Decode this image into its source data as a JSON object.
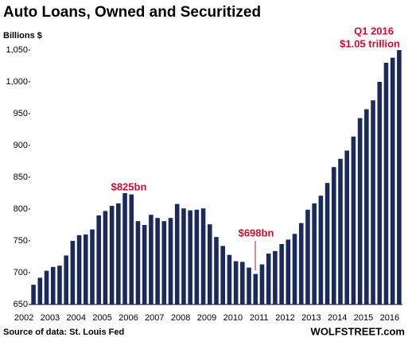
{
  "chart_data": {
    "type": "bar",
    "title": "Auto Loans, Owned and Securitized",
    "y_label": "Billions $",
    "source": "Source of data: St. Louis Fed",
    "brand": "WOLFSTREET.com",
    "annotations": [
      "$825bn",
      "$698bn",
      "Q1 2016",
      "$1.05 trillion"
    ],
    "color": "#1b2a5c",
    "categories": [
      "2002",
      null,
      null,
      null,
      "2003",
      null,
      null,
      null,
      "2004",
      null,
      null,
      null,
      "2005",
      null,
      null,
      null,
      "2006",
      null,
      null,
      null,
      "2007",
      null,
      null,
      null,
      "2008",
      null,
      null,
      null,
      "2009",
      null,
      null,
      null,
      "2010",
      null,
      null,
      null,
      "2011",
      null,
      null,
      null,
      "2012",
      null,
      null,
      null,
      "2013",
      null,
      null,
      null,
      "2014",
      null,
      null,
      null,
      "2015",
      null,
      null,
      null,
      "2016"
    ],
    "values": [
      681,
      692,
      703,
      709,
      711,
      727,
      750,
      759,
      760,
      768,
      790,
      797,
      805,
      809,
      825,
      823,
      781,
      775,
      791,
      786,
      781,
      786,
      808,
      801,
      798,
      799,
      801,
      776,
      756,
      742,
      728,
      718,
      717,
      708,
      698,
      713,
      730,
      734,
      745,
      752,
      761,
      778,
      799,
      809,
      821,
      841,
      866,
      879,
      892,
      914,
      943,
      957,
      971,
      1000,
      1030,
      1038,
      1050
    ],
    "ylim": [
      650,
      1050
    ],
    "yticks": [
      650,
      700,
      750,
      800,
      850,
      900,
      950,
      {
        "value": 1000,
        "label": "1,000"
      },
      {
        "value": 1050,
        "label": "1,050"
      }
    ]
  }
}
